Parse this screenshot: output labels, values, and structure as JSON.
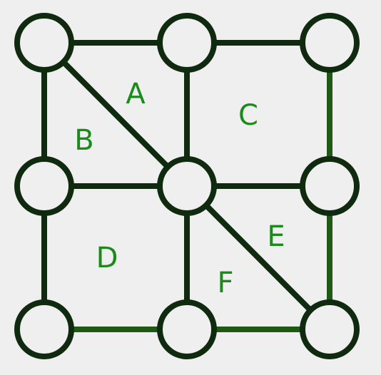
{
  "colors": {
    "background": "#efefef",
    "edge": "#0f2a0f",
    "edge_green": "#1f5a14",
    "node_fill": "#efefef",
    "label": "#1a8a1a"
  },
  "nodes": [
    {
      "id": "n1",
      "row": 0,
      "col": 0
    },
    {
      "id": "n2",
      "row": 0,
      "col": 1
    },
    {
      "id": "n3",
      "row": 0,
      "col": 2
    },
    {
      "id": "n4",
      "row": 1,
      "col": 0
    },
    {
      "id": "n5",
      "row": 1,
      "col": 1
    },
    {
      "id": "n6",
      "row": 1,
      "col": 2
    },
    {
      "id": "n7",
      "row": 2,
      "col": 0
    },
    {
      "id": "n8",
      "row": 2,
      "col": 1
    },
    {
      "id": "n9",
      "row": 2,
      "col": 2
    }
  ],
  "edges": [
    {
      "from": "n1",
      "to": "n2"
    },
    {
      "from": "n2",
      "to": "n3"
    },
    {
      "from": "n4",
      "to": "n5"
    },
    {
      "from": "n5",
      "to": "n6"
    },
    {
      "from": "n7",
      "to": "n8"
    },
    {
      "from": "n8",
      "to": "n9"
    },
    {
      "from": "n1",
      "to": "n4"
    },
    {
      "from": "n4",
      "to": "n7"
    },
    {
      "from": "n2",
      "to": "n5"
    },
    {
      "from": "n5",
      "to": "n8"
    },
    {
      "from": "n3",
      "to": "n6"
    },
    {
      "from": "n6",
      "to": "n9"
    },
    {
      "from": "n1",
      "to": "n5"
    },
    {
      "from": "n5",
      "to": "n9"
    }
  ],
  "regions": {
    "A": "A",
    "B": "B",
    "C": "C",
    "D": "D",
    "E": "E",
    "F": "F"
  }
}
